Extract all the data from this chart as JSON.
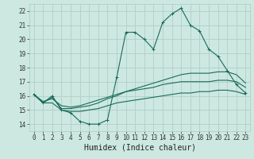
{
  "xlabel": "Humidex (Indice chaleur)",
  "xlim": [
    -0.5,
    23.5
  ],
  "ylim": [
    13.5,
    22.5
  ],
  "yticks": [
    14,
    15,
    16,
    17,
    18,
    19,
    20,
    21,
    22
  ],
  "xticks": [
    0,
    1,
    2,
    3,
    4,
    5,
    6,
    7,
    8,
    9,
    10,
    11,
    12,
    13,
    14,
    15,
    16,
    17,
    18,
    19,
    20,
    21,
    22,
    23
  ],
  "bg_color": "#cce8e0",
  "grid_color": "#b0cfc8",
  "line_color": "#1a6b5a",
  "main_line": [
    16.1,
    15.5,
    16.0,
    15.0,
    14.8,
    14.2,
    14.0,
    14.0,
    14.3,
    17.3,
    20.5,
    20.5,
    20.0,
    19.3,
    21.2,
    21.8,
    22.2,
    21.0,
    20.6,
    19.3,
    18.8,
    17.8,
    16.8,
    16.2
  ],
  "line2": [
    16.1,
    15.5,
    15.9,
    15.1,
    15.1,
    15.2,
    15.3,
    15.5,
    15.8,
    16.0,
    16.3,
    16.5,
    16.7,
    16.9,
    17.1,
    17.3,
    17.5,
    17.6,
    17.6,
    17.6,
    17.7,
    17.7,
    17.5,
    16.9
  ],
  "line3": [
    16.1,
    15.6,
    15.8,
    15.3,
    15.2,
    15.3,
    15.5,
    15.7,
    15.9,
    16.1,
    16.3,
    16.4,
    16.5,
    16.6,
    16.8,
    16.9,
    17.0,
    17.0,
    17.0,
    17.0,
    17.1,
    17.1,
    17.0,
    16.6
  ],
  "line4": [
    16.1,
    15.5,
    15.5,
    15.0,
    14.9,
    14.9,
    15.0,
    15.1,
    15.3,
    15.5,
    15.6,
    15.7,
    15.8,
    15.9,
    16.0,
    16.1,
    16.2,
    16.2,
    16.3,
    16.3,
    16.4,
    16.4,
    16.3,
    16.1
  ]
}
